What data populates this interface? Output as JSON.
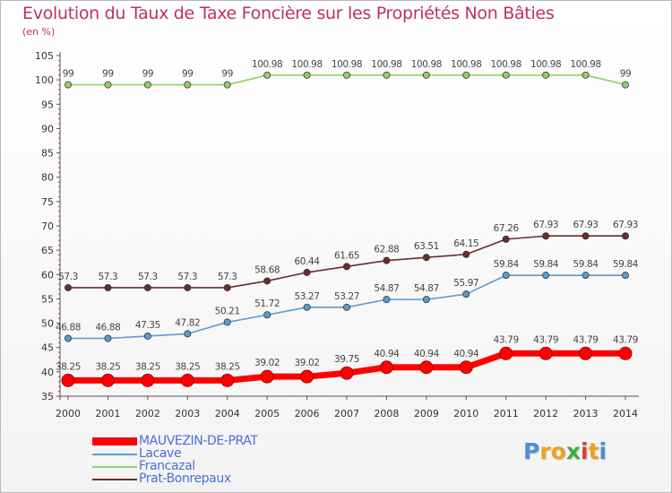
{
  "chart_data": {
    "type": "line",
    "title": "Evolution du Taux de Taxe Foncière sur les Propriétés Non Bâties",
    "unit_label": "(en %)",
    "xlabel": "",
    "ylabel": "",
    "x": [
      "2000",
      "2001",
      "2002",
      "2003",
      "2004",
      "2005",
      "2006",
      "2007",
      "2008",
      "2009",
      "2010",
      "2011",
      "2012",
      "2013",
      "2014"
    ],
    "ylim": [
      35,
      105
    ],
    "y_ticks": [
      35,
      40,
      45,
      50,
      55,
      60,
      65,
      70,
      75,
      80,
      85,
      90,
      95,
      100,
      105
    ],
    "grid": false,
    "legend_position": "bottom-left",
    "series": [
      {
        "name": "MAUVEZIN-DE-PRAT",
        "color": "#ff0000",
        "values": [
          38.25,
          38.25,
          38.25,
          38.25,
          38.25,
          39.02,
          39.02,
          39.75,
          40.94,
          40.94,
          40.94,
          43.79,
          43.79,
          43.79,
          43.79
        ],
        "labels": [
          "38.25",
          "38.25",
          "38.25",
          "38.25",
          "38.25",
          "39.02",
          "39.02",
          "39.75",
          "40.94",
          "40.94",
          "40.94",
          "43.79",
          "43.79",
          "43.79",
          "43.79"
        ]
      },
      {
        "name": "Lacave",
        "color": "#5b9bd5",
        "values": [
          46.88,
          46.88,
          47.35,
          47.82,
          50.21,
          51.72,
          53.27,
          53.27,
          54.87,
          54.87,
          55.97,
          59.84,
          59.84,
          59.84,
          59.84
        ],
        "labels": [
          "46.88",
          "46.88",
          "47.35",
          "47.82",
          "50.21",
          "51.72",
          "53.27",
          "53.27",
          "54.87",
          "54.87",
          "55.97",
          "59.84",
          "59.84",
          "59.84",
          "59.84"
        ]
      },
      {
        "name": "Francazal",
        "color": "#8fd16a",
        "values": [
          99,
          99,
          99,
          99,
          99,
          100.98,
          100.98,
          100.98,
          100.98,
          100.98,
          100.98,
          100.98,
          100.98,
          100.98,
          99
        ],
        "labels": [
          "99",
          "99",
          "99",
          "99",
          "99",
          "100.98",
          "100.98",
          "100.98",
          "100.98",
          "100.98",
          "100.98",
          "100.98",
          "100.98",
          "100.98",
          "99"
        ]
      },
      {
        "name": "Prat-Bonrepaux",
        "color": "#6e2b2b",
        "values": [
          57.3,
          57.3,
          57.3,
          57.3,
          57.3,
          58.68,
          60.44,
          61.65,
          62.88,
          63.51,
          64.15,
          67.26,
          67.93,
          67.93,
          67.93
        ],
        "labels": [
          "57.3",
          "57.3",
          "57.3",
          "57.3",
          "57.3",
          "58.68",
          "60.44",
          "61.65",
          "62.88",
          "63.51",
          "64.15",
          "67.26",
          "67.93",
          "67.93",
          "67.93"
        ]
      }
    ]
  },
  "logo": {
    "letters": [
      "P",
      "r",
      "o",
      "x",
      "i",
      "t",
      "i"
    ],
    "colors": [
      "#4a8fd8",
      "#f0a020",
      "#f0a020",
      "#3cb043",
      "#d63f3f",
      "#f0a020",
      "#4a8fd8"
    ]
  }
}
